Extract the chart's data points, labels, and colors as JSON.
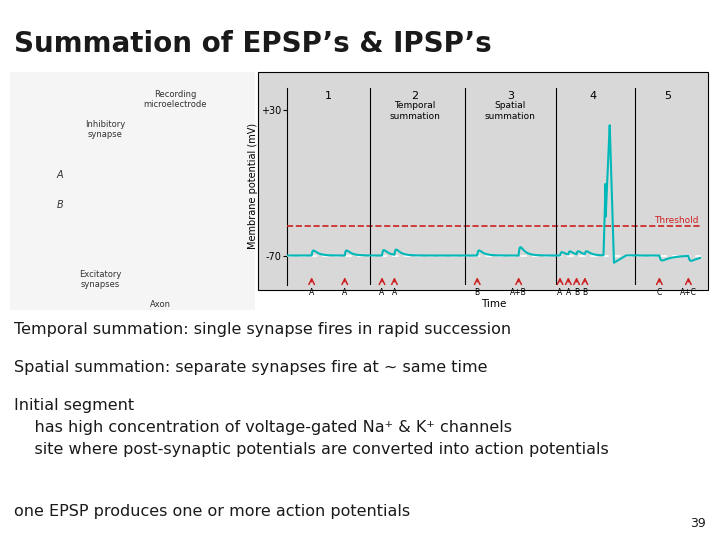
{
  "title": "Summation of EPSP’s & IPSP’s",
  "title_fontsize": 20,
  "title_fontweight": "bold",
  "background_color": "#ffffff",
  "line1": "Temporal summation: single synapse fires in rapid succession",
  "line2": "Spatial summation: separate synapses fire at ~ same time",
  "line3a": "Initial segment",
  "line3b": "    has high concentration of voltage-gated Na⁺ & K⁺ channels",
  "line3c": "    site where post-synaptic potentials are converted into action potentials",
  "line4": "one EPSP produces one or more action potentials",
  "page_num": "39",
  "text_fontsize": 11.5,
  "text_color": "#1a1a1a",
  "graph_bg": "#d8d8d8",
  "trace_color": "#00b8b8",
  "threshold_color": "#cc2222",
  "resting_color": "#ffffff",
  "arrow_color": "#cc2222"
}
